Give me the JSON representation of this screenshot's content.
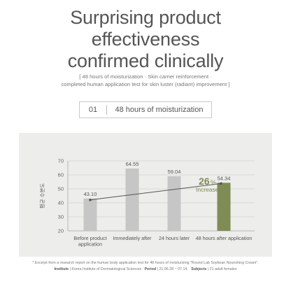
{
  "headline": {
    "line1": "Surprising product",
    "line2": "effectiveness",
    "line3": "confirmed clinically"
  },
  "subtitle": {
    "line1": "[ 48 hours of moisturization · Skin carrier reinforcement ·",
    "line2": "completed human application test for skin luster (radiant) improvement ]"
  },
  "section": {
    "number": "01",
    "label": "48 hours of moisturization"
  },
  "chart_data": {
    "type": "bar",
    "ylabel": "평균 수분도",
    "ylim": [
      20,
      70
    ],
    "yticks": [
      20,
      30,
      40,
      50,
      60,
      70
    ],
    "grid": true,
    "categories": [
      "Before product application",
      "Immediately after",
      "24 hours later",
      "48 hours after application"
    ],
    "values": [
      43.1,
      64.55,
      59.04,
      54.34
    ],
    "value_labels": [
      "43.10",
      "64.55",
      "59.04",
      "54.34"
    ],
    "bar_colors": [
      "#c6c6c6",
      "#c6c6c6",
      "#c6c6c6",
      "#7f8c55"
    ],
    "annotation": {
      "value": "26",
      "unit": "%",
      "text": "Increase",
      "arrow": "▲",
      "color": "#7f8c55"
    }
  },
  "footnote": {
    "line1": "* Excerpt from a research report on the human body application test for 48 hours of moisturizing \"Round Lab Soybean Nourishing Cream\".",
    "institute_label": "Institute",
    "institute_value": "| Korea Institute of Dermatological Sciences",
    "period_label": "Period",
    "period_value": "| 21.06.28 ~ 07.14.",
    "subjects_label": "Subjects",
    "subjects_value": "| 21 adult females"
  }
}
